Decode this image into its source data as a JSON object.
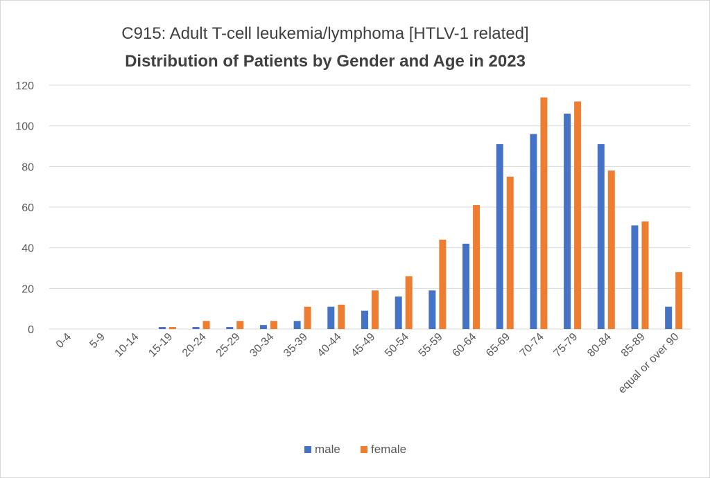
{
  "chart_data": {
    "type": "bar",
    "title": "C915: Adult T-cell leukemia/lymphoma [HTLV-1 related]",
    "subtitle": "Distribution of Patients by Gender and Age in 2023",
    "xlabel": "",
    "ylabel": "",
    "ylim": [
      0,
      120
    ],
    "yticks": [
      0,
      20,
      40,
      60,
      80,
      100,
      120
    ],
    "grid": true,
    "legend_position": "bottom",
    "categories": [
      "0-4",
      "5-9",
      "10-14",
      "15-19",
      "20-24",
      "25-29",
      "30-34",
      "35-39",
      "40-44",
      "45-49",
      "50-54",
      "55-59",
      "60-64",
      "65-69",
      "70-74",
      "75-79",
      "80-84",
      "85-89",
      "equal or over 90"
    ],
    "series": [
      {
        "name": "male",
        "color": "#4472c4",
        "values": [
          0,
          0,
          0,
          1,
          1,
          1,
          2,
          4,
          11,
          9,
          16,
          19,
          42,
          91,
          96,
          106,
          91,
          51,
          11
        ]
      },
      {
        "name": "female",
        "color": "#ed7d31",
        "values": [
          0,
          0,
          0,
          1,
          4,
          4,
          4,
          11,
          12,
          19,
          26,
          44,
          61,
          75,
          114,
          112,
          78,
          53,
          28
        ]
      }
    ]
  }
}
